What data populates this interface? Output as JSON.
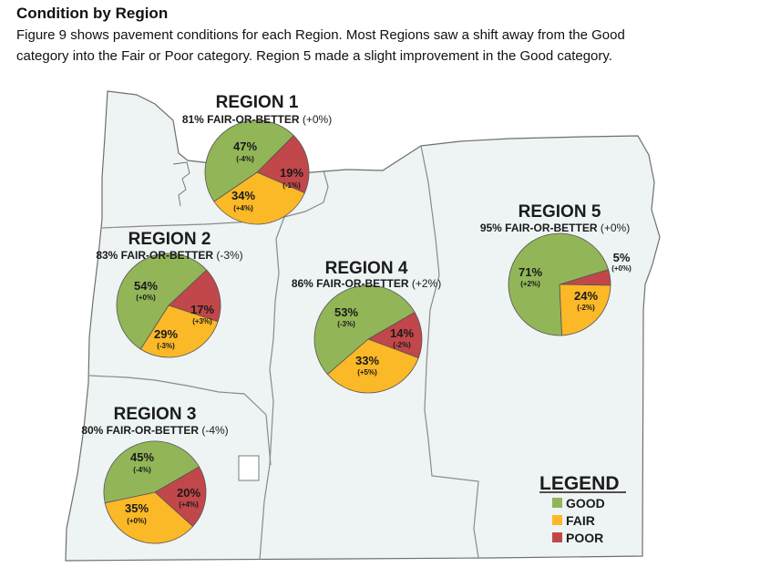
{
  "header": {
    "heading": "Condition by Region",
    "line1": "Figure 9 shows pavement conditions for each Region. Most Regions saw a shift away from the Good",
    "line2": "category into the Fair or Poor category. Region 5 made a slight improvement in the Good category."
  },
  "colors": {
    "good": "#92b558",
    "fair": "#fbb827",
    "poor": "#c1474a",
    "map_fill": "#eef3f4",
    "map_stroke": "#6f6f6f",
    "divider": "#8a8a8a"
  },
  "regions": [
    {
      "title": "REGION 1",
      "summary": "81% FAIR-OR-BETTER",
      "change": "(+0%)",
      "slices": [
        {
          "category": "GOOD",
          "value": "47%",
          "delta": "(-4%)"
        },
        {
          "category": "POOR",
          "value": "19%",
          "delta": "(-1%)"
        },
        {
          "category": "FAIR",
          "value": "34%",
          "delta": "(+4%)"
        }
      ]
    },
    {
      "title": "REGION 2",
      "summary": "83% FAIR-OR-BETTER",
      "change": "(-3%)",
      "slices": [
        {
          "category": "GOOD",
          "value": "54%",
          "delta": "(+0%)"
        },
        {
          "category": "POOR",
          "value": "17%",
          "delta": "(+3%)"
        },
        {
          "category": "FAIR",
          "value": "29%",
          "delta": "(-3%)"
        }
      ]
    },
    {
      "title": "REGION 3",
      "summary": "80% FAIR-OR-BETTER",
      "change": "(-4%)",
      "slices": [
        {
          "category": "GOOD",
          "value": "45%",
          "delta": "(-4%)"
        },
        {
          "category": "POOR",
          "value": "20%",
          "delta": "(+4%)"
        },
        {
          "category": "FAIR",
          "value": "35%",
          "delta": "(+0%)"
        }
      ]
    },
    {
      "title": "REGION 4",
      "summary": "86% FAIR-OR-BETTER",
      "change": "(+2%)",
      "slices": [
        {
          "category": "GOOD",
          "value": "53%",
          "delta": "(-3%)"
        },
        {
          "category": "POOR",
          "value": "14%",
          "delta": "(-2%)"
        },
        {
          "category": "FAIR",
          "value": "33%",
          "delta": "(+5%)"
        }
      ]
    },
    {
      "title": "REGION 5",
      "summary": "95% FAIR-OR-BETTER",
      "change": "(+0%)",
      "slices": [
        {
          "category": "GOOD",
          "value": "71%",
          "delta": "(+2%)"
        },
        {
          "category": "POOR",
          "value": "5%",
          "delta": "(+0%)"
        },
        {
          "category": "FAIR",
          "value": "24%",
          "delta": "(-2%)"
        }
      ]
    }
  ],
  "legend": {
    "title": "LEGEND",
    "items": [
      "GOOD",
      "FAIR",
      "POOR"
    ]
  }
}
